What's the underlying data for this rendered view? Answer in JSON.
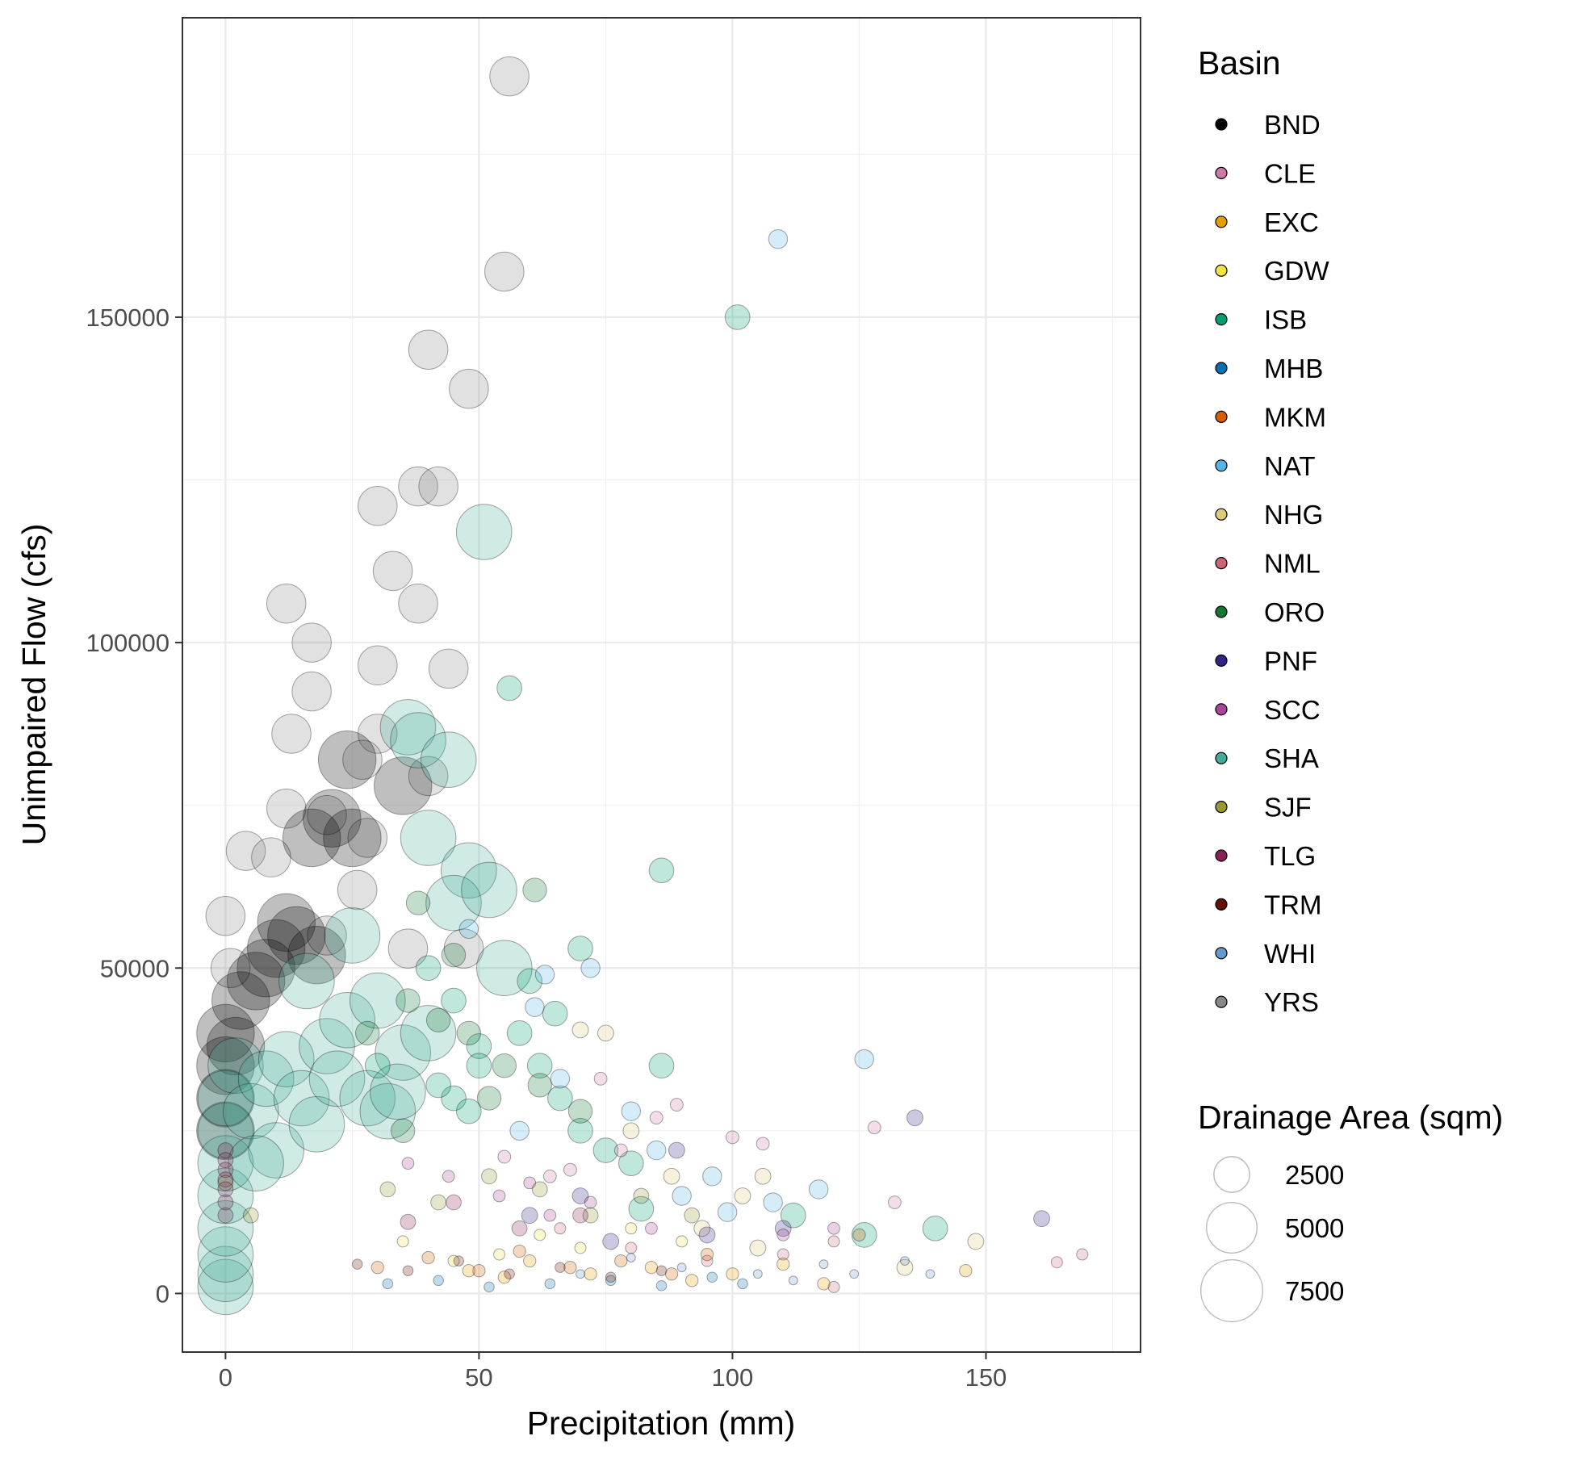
{
  "chart_data": {
    "type": "scatter",
    "title": "",
    "xlabel": "Precipitation (mm)",
    "ylabel": "Unimpaired Flow (cfs)",
    "xlim": [
      -8.5,
      180.5
    ],
    "ylim": [
      -9000,
      196000
    ],
    "xticks": [
      0,
      50,
      100,
      150
    ],
    "yticks": [
      0,
      50000,
      100000,
      150000
    ],
    "grid": true,
    "point_opacity": 0.25,
    "legend_color": {
      "title": "Basin",
      "placement": "right",
      "entries": [
        {
          "label": "BND",
          "color": "#000000"
        },
        {
          "label": "CLE",
          "color": "#CC79A7"
        },
        {
          "label": "EXC",
          "color": "#E69F00"
        },
        {
          "label": "GDW",
          "color": "#F0E442"
        },
        {
          "label": "ISB",
          "color": "#009E73"
        },
        {
          "label": "MHB",
          "color": "#0072B2"
        },
        {
          "label": "MKM",
          "color": "#D55E00"
        },
        {
          "label": "NAT",
          "color": "#56B4E9"
        },
        {
          "label": "NHG",
          "color": "#DDCC77"
        },
        {
          "label": "NML",
          "color": "#CC6677"
        },
        {
          "label": "ORO",
          "color": "#117733"
        },
        {
          "label": "PNF",
          "color": "#332288"
        },
        {
          "label": "SCC",
          "color": "#AA4499"
        },
        {
          "label": "SHA",
          "color": "#44AA99"
        },
        {
          "label": "SJF",
          "color": "#999933"
        },
        {
          "label": "TLG",
          "color": "#882255"
        },
        {
          "label": "TRM",
          "color": "#661100"
        },
        {
          "label": "WHI",
          "color": "#6699CC"
        },
        {
          "label": "YRS",
          "color": "#888888"
        }
      ]
    },
    "legend_size": {
      "title": "Drainage Area (sqm)",
      "placement": "right",
      "entries": [
        {
          "label": "2500",
          "value": 2500
        },
        {
          "label": "5000",
          "value": 5000
        },
        {
          "label": "7500",
          "value": 7500
        }
      ]
    },
    "size_scale_max_area": 9000,
    "series": [
      {
        "name": "YRS",
        "color": "#888888",
        "area": 3000,
        "points": [
          [
            56,
            187000
          ],
          [
            55,
            157000
          ],
          [
            40,
            145000
          ],
          [
            48,
            139000
          ],
          [
            30,
            121000
          ],
          [
            38,
            124000
          ],
          [
            42,
            124000
          ],
          [
            33,
            111000
          ],
          [
            38,
            106000
          ],
          [
            12,
            106000
          ],
          [
            17,
            100000
          ],
          [
            30,
            96500
          ],
          [
            44,
            96000
          ],
          [
            17,
            92500
          ],
          [
            13,
            86000
          ],
          [
            30,
            86000
          ],
          [
            27,
            82000
          ],
          [
            40,
            79500
          ],
          [
            12,
            74500
          ],
          [
            20,
            73500
          ],
          [
            4,
            68000
          ],
          [
            9,
            67000
          ],
          [
            0,
            58000
          ],
          [
            1,
            50000
          ],
          [
            20,
            55000
          ],
          [
            26,
            62000
          ],
          [
            36,
            53000
          ],
          [
            47,
            53000
          ],
          [
            28,
            70000
          ]
        ]
      },
      {
        "name": "BND",
        "color": "#000000",
        "area": 6500,
        "points": [
          [
            0,
            40000
          ],
          [
            0,
            35000
          ],
          [
            0,
            30000
          ],
          [
            0,
            25000
          ],
          [
            3,
            45000
          ],
          [
            6,
            48000
          ],
          [
            10,
            53000
          ],
          [
            14,
            55000
          ],
          [
            18,
            52000
          ],
          [
            12,
            57000
          ],
          [
            8,
            50000
          ],
          [
            21,
            73000
          ],
          [
            25,
            70000
          ],
          [
            24,
            82000
          ],
          [
            17,
            70000
          ],
          [
            35,
            78000
          ],
          [
            2,
            38000
          ]
        ]
      },
      {
        "name": "SHA",
        "color": "#44AA99",
        "area": 6000,
        "points": [
          [
            0,
            1000
          ],
          [
            0,
            3000
          ],
          [
            0,
            6000
          ],
          [
            0,
            10000
          ],
          [
            0,
            15000
          ],
          [
            0,
            20000
          ],
          [
            0,
            25000
          ],
          [
            0,
            30000
          ],
          [
            2,
            35000
          ],
          [
            5,
            28000
          ],
          [
            8,
            33000
          ],
          [
            10,
            22000
          ],
          [
            12,
            36000
          ],
          [
            15,
            30000
          ],
          [
            18,
            26000
          ],
          [
            20,
            38000
          ],
          [
            22,
            33000
          ],
          [
            24,
            42000
          ],
          [
            28,
            30000
          ],
          [
            30,
            45000
          ],
          [
            32,
            28000
          ],
          [
            35,
            37000
          ],
          [
            36,
            87000
          ],
          [
            38,
            85000
          ],
          [
            40,
            70000
          ],
          [
            44,
            82000
          ],
          [
            48,
            65000
          ],
          [
            45,
            60000
          ],
          [
            52,
            62000
          ],
          [
            55,
            50000
          ],
          [
            51,
            117000
          ],
          [
            25,
            55000
          ],
          [
            16,
            48000
          ],
          [
            6,
            20000
          ],
          [
            34,
            31000
          ],
          [
            40,
            40000
          ]
        ]
      },
      {
        "name": "ISB",
        "color": "#009E73",
        "area": 1200,
        "points": [
          [
            101,
            150000
          ],
          [
            86,
            65000
          ],
          [
            56,
            93000
          ],
          [
            70,
            53000
          ],
          [
            60,
            48000
          ],
          [
            45,
            45000
          ],
          [
            65,
            43000
          ],
          [
            45,
            30000
          ],
          [
            50,
            38000
          ],
          [
            58,
            40000
          ],
          [
            62,
            35000
          ],
          [
            66,
            30000
          ],
          [
            70,
            25000
          ],
          [
            75,
            22000
          ],
          [
            86,
            35000
          ],
          [
            50,
            35000
          ],
          [
            40,
            50000
          ],
          [
            42,
            32000
          ],
          [
            82,
            13000
          ],
          [
            112,
            12000
          ],
          [
            126,
            9000
          ],
          [
            140,
            10000
          ],
          [
            30,
            35000
          ],
          [
            48,
            28000
          ],
          [
            80,
            20000
          ]
        ]
      },
      {
        "name": "ORO",
        "color": "#117733",
        "area": 1100,
        "points": [
          [
            61,
            62000
          ],
          [
            45,
            52000
          ],
          [
            38,
            60000
          ],
          [
            48,
            40000
          ],
          [
            55,
            35000
          ],
          [
            62,
            32000
          ],
          [
            36,
            45000
          ],
          [
            28,
            40000
          ],
          [
            42,
            42000
          ],
          [
            70,
            28000
          ],
          [
            35,
            25000
          ],
          [
            52,
            30000
          ]
        ]
      },
      {
        "name": "NAT",
        "color": "#56B4E9",
        "area": 700,
        "points": [
          [
            109,
            162000
          ],
          [
            48,
            56000
          ],
          [
            72,
            50000
          ],
          [
            63,
            49000
          ],
          [
            61,
            44000
          ],
          [
            126,
            36000
          ],
          [
            80,
            28000
          ],
          [
            96,
            18000
          ],
          [
            117,
            16000
          ],
          [
            108,
            14000
          ],
          [
            99,
            12500
          ],
          [
            90,
            15000
          ],
          [
            85,
            22000
          ],
          [
            66,
            33000
          ],
          [
            58,
            25000
          ]
        ]
      },
      {
        "name": "NHG",
        "color": "#DDCC77",
        "area": 500,
        "points": [
          [
            148,
            8000
          ],
          [
            106,
            18000
          ],
          [
            94,
            10000
          ],
          [
            75,
            40000
          ],
          [
            70,
            40500
          ],
          [
            80,
            25000
          ],
          [
            102,
            15000
          ],
          [
            88,
            18000
          ],
          [
            134,
            4000
          ],
          [
            105,
            7000
          ]
        ]
      },
      {
        "name": "PNF",
        "color": "#332288",
        "area": 500,
        "points": [
          [
            136,
            27000
          ],
          [
            161,
            11500
          ],
          [
            89,
            22000
          ],
          [
            110,
            10000
          ],
          [
            95,
            9000
          ],
          [
            76,
            8000
          ],
          [
            60,
            12000
          ],
          [
            70,
            15000
          ]
        ]
      },
      {
        "name": "CLE",
        "color": "#CC79A7",
        "area": 320,
        "points": [
          [
            74,
            33000
          ],
          [
            89,
            29000
          ],
          [
            100,
            24000
          ],
          [
            106,
            23000
          ],
          [
            128,
            25500
          ],
          [
            132,
            14000
          ],
          [
            85,
            27000
          ],
          [
            78,
            22000
          ],
          [
            64,
            18000
          ],
          [
            55,
            21000
          ],
          [
            68,
            19000
          ]
        ]
      },
      {
        "name": "NML",
        "color": "#CC6677",
        "area": 250,
        "points": [
          [
            169,
            6000
          ],
          [
            164,
            4800
          ],
          [
            120,
            8000
          ],
          [
            110,
            6000
          ],
          [
            95,
            5000
          ],
          [
            80,
            7000
          ],
          [
            66,
            10000
          ],
          [
            120,
            1000
          ]
        ]
      },
      {
        "name": "EXC",
        "color": "#E69F00",
        "area": 300,
        "points": [
          [
            146,
            3500
          ],
          [
            118,
            1500
          ],
          [
            100,
            3000
          ],
          [
            92,
            2000
          ],
          [
            84,
            4000
          ],
          [
            72,
            3000
          ],
          [
            60,
            5000
          ],
          [
            55,
            2500
          ],
          [
            48,
            3500
          ],
          [
            110,
            4500
          ]
        ]
      },
      {
        "name": "MKM",
        "color": "#D55E00",
        "area": 300,
        "points": [
          [
            125,
            9000
          ],
          [
            95,
            6000
          ],
          [
            88,
            3000
          ],
          [
            78,
            5000
          ],
          [
            68,
            4000
          ],
          [
            58,
            6500
          ],
          [
            50,
            3500
          ],
          [
            40,
            5500
          ],
          [
            30,
            4000
          ]
        ]
      },
      {
        "name": "GDW",
        "color": "#F0E442",
        "area": 250,
        "points": [
          [
            90,
            8000
          ],
          [
            80,
            10000
          ],
          [
            70,
            7000
          ],
          [
            62,
            9000
          ],
          [
            54,
            6000
          ],
          [
            45,
            5000
          ],
          [
            35,
            8000
          ]
        ]
      },
      {
        "name": "MHB",
        "color": "#0072B2",
        "area": 200,
        "points": [
          [
            102,
            1500
          ],
          [
            96,
            2500
          ],
          [
            86,
            1200
          ],
          [
            76,
            2000
          ],
          [
            64,
            1500
          ],
          [
            52,
            1000
          ],
          [
            42,
            2000
          ],
          [
            32,
            1500
          ]
        ]
      },
      {
        "name": "SCC",
        "color": "#AA4499",
        "area": 280,
        "points": [
          [
            110,
            9000
          ],
          [
            120,
            10000
          ],
          [
            84,
            10000
          ],
          [
            72,
            14000
          ],
          [
            64,
            12000
          ],
          [
            54,
            15000
          ],
          [
            44,
            18000
          ],
          [
            36,
            20000
          ],
          [
            60,
            17000
          ]
        ]
      },
      {
        "name": "SJF",
        "color": "#999933",
        "area": 450,
        "points": [
          [
            92,
            12000
          ],
          [
            82,
            15000
          ],
          [
            72,
            12000
          ],
          [
            62,
            16000
          ],
          [
            52,
            18000
          ],
          [
            42,
            14000
          ],
          [
            32,
            16000
          ],
          [
            0,
            17000
          ],
          [
            5,
            12000
          ]
        ]
      },
      {
        "name": "TLG",
        "color": "#882255",
        "area": 450,
        "points": [
          [
            0,
            22000
          ],
          [
            0,
            20500
          ],
          [
            0,
            19000
          ],
          [
            0,
            17500
          ],
          [
            0,
            16000
          ],
          [
            0,
            14000
          ],
          [
            0,
            12000
          ],
          [
            45,
            14000
          ],
          [
            58,
            10000
          ],
          [
            70,
            12000
          ],
          [
            36,
            11000
          ]
        ]
      },
      {
        "name": "TRM",
        "color": "#661100",
        "area": 200,
        "points": [
          [
            66,
            4000
          ],
          [
            56,
            3000
          ],
          [
            46,
            5000
          ],
          [
            36,
            3500
          ],
          [
            26,
            4500
          ],
          [
            76,
            2500
          ],
          [
            86,
            3500
          ]
        ]
      },
      {
        "name": "WHI",
        "color": "#6699CC",
        "area": 150,
        "points": [
          [
            105,
            3000
          ],
          [
            112,
            2000
          ],
          [
            118,
            4500
          ],
          [
            124,
            3000
          ],
          [
            134,
            5000
          ],
          [
            139,
            3000
          ],
          [
            90,
            4000
          ],
          [
            80,
            5500
          ],
          [
            70,
            3000
          ]
        ]
      }
    ]
  }
}
